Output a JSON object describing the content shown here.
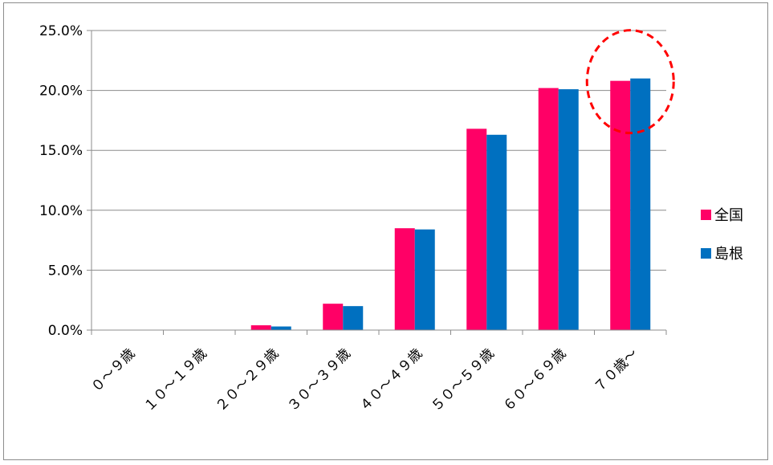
{
  "chart_data": {
    "type": "bar",
    "categories": [
      "０～９歳",
      "１０～１９歳",
      "２０～２９歳",
      "３０～３９歳",
      "４０～４９歳",
      "５０～５９歳",
      "６０～６９歳",
      "７０歳～"
    ],
    "series": [
      {
        "name": "全国",
        "color": "#ff0066",
        "values": [
          0.0,
          0.0,
          0.4,
          2.2,
          8.5,
          16.8,
          20.2,
          20.8
        ]
      },
      {
        "name": "島根",
        "color": "#0070c0",
        "values": [
          0.0,
          0.0,
          0.3,
          2.0,
          8.4,
          16.3,
          20.1,
          21.0
        ]
      }
    ],
    "y_ticks": [
      "0.0%",
      "5.0%",
      "10.0%",
      "15.0%",
      "20.0%",
      "25.0%"
    ],
    "ylim": [
      0,
      25
    ],
    "grid": true,
    "legend_position": "right",
    "annotation": {
      "type": "dashed-ellipse",
      "color": "#ff0000",
      "target_category": "７０歳～"
    }
  }
}
